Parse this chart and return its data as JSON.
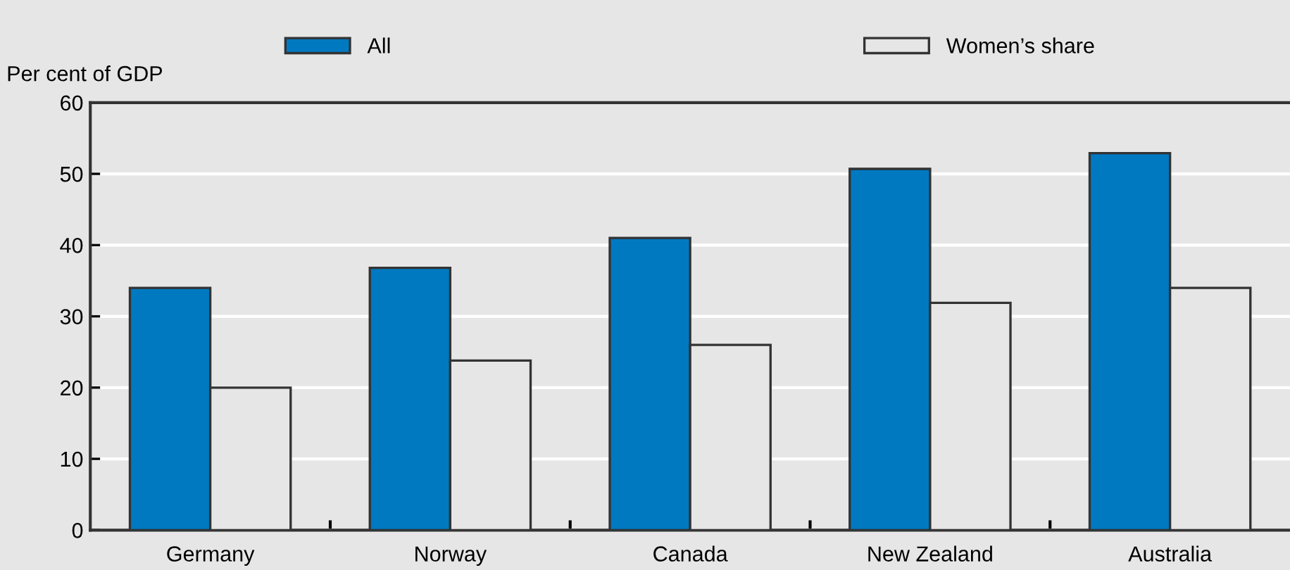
{
  "chart_data": {
    "type": "bar",
    "ylabel": "Per cent of GDP",
    "categories": [
      "Germany",
      "Norway",
      "Canada",
      "New Zealand",
      "Australia"
    ],
    "series": [
      {
        "name": "All",
        "color": "#0079c1",
        "values": [
          34,
          36.8,
          41,
          50.7,
          52.9
        ]
      },
      {
        "name": "Women’s share",
        "color": "#e6e6e6",
        "values": [
          20,
          23.8,
          26,
          31.9,
          34
        ]
      }
    ],
    "ylim": [
      0,
      60
    ],
    "yticks": [
      0,
      10,
      20,
      30,
      40,
      50,
      60
    ],
    "grid": "y",
    "legend": "top"
  }
}
